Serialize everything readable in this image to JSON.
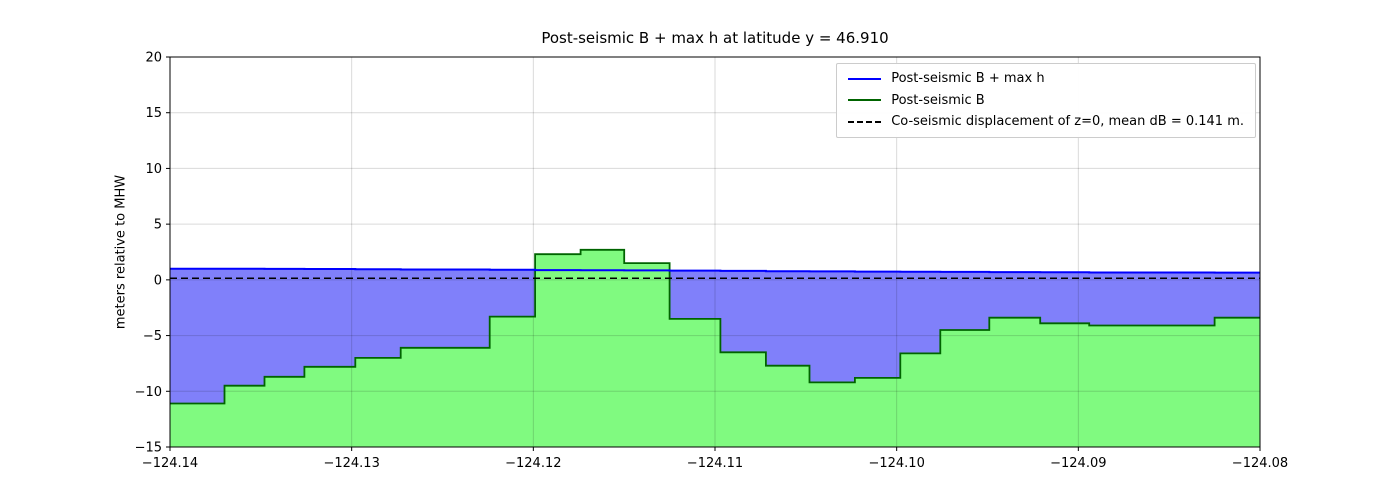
{
  "title": "Post-seismic B + max h at latitude y = 46.910",
  "ylabel": "meters relative to MHW",
  "legend": [
    {
      "label": "Post-seismic B + max h",
      "color": "#0000ff",
      "dash": false
    },
    {
      "label": "Post-seismic B",
      "color": "#006400",
      "dash": false
    },
    {
      "label": "Co-seismic displacement of z=0, mean dB = 0.141 m.",
      "color": "#000000",
      "dash": true
    }
  ],
  "chart_data": {
    "type": "area",
    "title": "Post-seismic B + max h at latitude y = 46.910",
    "xlabel": "",
    "ylabel": "meters relative to MHW",
    "xlim": [
      -124.14,
      -124.08
    ],
    "ylim": [
      -15,
      20
    ],
    "grid": true,
    "legend_position": "upper right",
    "xticks": [
      {
        "value": -124.14,
        "label": "−124.14"
      },
      {
        "value": -124.13,
        "label": "−124.13"
      },
      {
        "value": -124.12,
        "label": "−124.12"
      },
      {
        "value": -124.11,
        "label": "−124.11"
      },
      {
        "value": -124.1,
        "label": "−124.10"
      },
      {
        "value": -124.09,
        "label": "−124.09"
      },
      {
        "value": -124.08,
        "label": "−124.08"
      }
    ],
    "yticks": [
      {
        "value": -15,
        "label": "−15"
      },
      {
        "value": -10,
        "label": "−10"
      },
      {
        "value": -5,
        "label": "−5"
      },
      {
        "value": 0,
        "label": "0"
      },
      {
        "value": 5,
        "label": "5"
      },
      {
        "value": 10,
        "label": "10"
      },
      {
        "value": 15,
        "label": "15"
      },
      {
        "value": 20,
        "label": "20"
      }
    ],
    "step_edges": [
      -124.14,
      -124.137,
      -124.1348,
      -124.1326,
      -124.1298,
      -124.1273,
      -124.1224,
      -124.1199,
      -124.1174,
      -124.115,
      -124.1125,
      -124.1097,
      -124.1072,
      -124.1048,
      -124.1023,
      -124.0998,
      -124.0976,
      -124.0949,
      -124.0921,
      -124.0894,
      -124.0825,
      -124.08
    ],
    "series": [
      {
        "name": "Post-seismic B + max h",
        "values": [
          1.0,
          1.0,
          0.98,
          0.97,
          0.95,
          0.93,
          0.9,
          0.88,
          0.87,
          0.85,
          0.83,
          0.8,
          0.78,
          0.76,
          0.74,
          0.72,
          0.71,
          0.7,
          0.68,
          0.66,
          0.65
        ]
      },
      {
        "name": "Post-seismic B",
        "values": [
          -11.1,
          -9.5,
          -8.7,
          -7.8,
          -7.0,
          -6.1,
          -3.3,
          2.3,
          2.7,
          1.5,
          -3.5,
          -6.5,
          -7.7,
          -9.2,
          -8.8,
          -6.6,
          -4.5,
          -3.4,
          -3.9,
          -4.1,
          -3.4
        ]
      }
    ],
    "dashed_line_y": 0.141,
    "colors": {
      "blue_line": "#0000ff",
      "blue_fill": "#8080fa",
      "green_line": "#006400",
      "green_fill": "#80fa80",
      "dashed_line": "#000000",
      "grid": "rgba(0,0,0,0.15)",
      "axis": "#000000"
    }
  }
}
